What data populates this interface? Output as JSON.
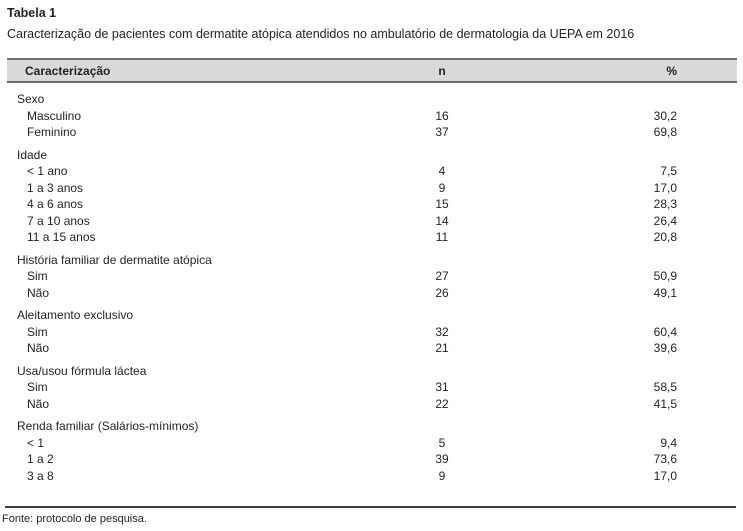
{
  "doc": {
    "table_label": "Tabela 1",
    "caption": "Caracterização de pacientes com dermatite atópica atendidos no ambulatório de dermatologia da UEPA em 2016",
    "footer": "Fonte: protocolo de pesquisa."
  },
  "table": {
    "headers": [
      "Caracterização",
      "n",
      "%"
    ],
    "sections": [
      {
        "label": "Sexo",
        "rows": [
          [
            "Masculino",
            "16",
            "30,2"
          ],
          [
            "Feminino",
            "37",
            "69,8"
          ]
        ]
      },
      {
        "label": "Idade",
        "rows": [
          [
            "< 1 ano",
            "4",
            "7,5"
          ],
          [
            "1 a 3 anos",
            "9",
            "17,0"
          ],
          [
            "4 a 6 anos",
            "15",
            "28,3"
          ],
          [
            "7 a 10 anos",
            "14",
            "26,4"
          ],
          [
            "11 a 15 anos",
            "11",
            "20,8"
          ]
        ]
      },
      {
        "label": "História familiar de dermatite atópica",
        "rows": [
          [
            "Sim",
            "27",
            "50,9"
          ],
          [
            "Não",
            "26",
            "49,1"
          ]
        ]
      },
      {
        "label": "Aleitamento exclusivo",
        "rows": [
          [
            "Sim",
            "32",
            "60,4"
          ],
          [
            "Não",
            "21",
            "39,6"
          ]
        ]
      },
      {
        "label": "Usa/usou fórmula láctea",
        "rows": [
          [
            "Sim",
            "31",
            "58,5"
          ],
          [
            "Não",
            "22",
            "41,5"
          ]
        ]
      },
      {
        "label": "Renda familiar (Salários-mínimos)",
        "rows": [
          [
            "< 1",
            "5",
            "9,4"
          ],
          [
            "1 a 2",
            "39",
            "73,6"
          ],
          [
            "3 a 8",
            "9",
            "17,0"
          ]
        ]
      }
    ]
  },
  "colors": {
    "text": "#231f20",
    "header_bg": "#d9d9d9",
    "header_border": "#6e6e6e",
    "rule": "#3c3c3c"
  }
}
